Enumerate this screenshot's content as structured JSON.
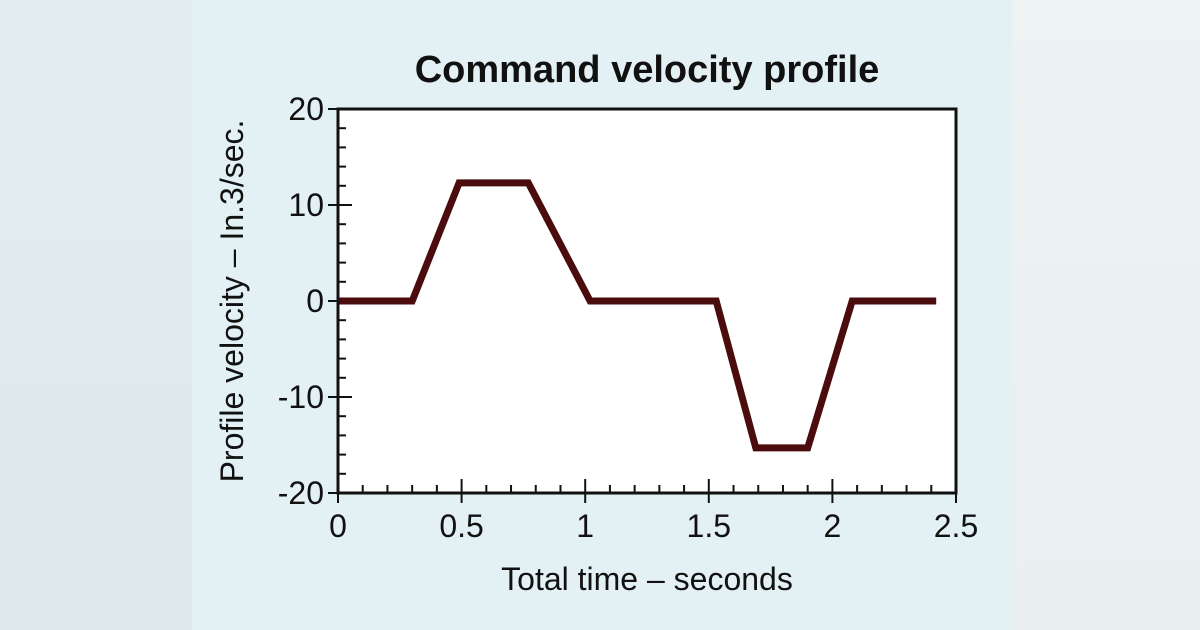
{
  "chart_data": {
    "type": "line",
    "title": "Command velocity profile",
    "xlabel": "Total time – seconds",
    "ylabel": "Profile velocity – In.3/sec.",
    "xlim": [
      0,
      2.5
    ],
    "ylim": [
      -20,
      20
    ],
    "x_ticks": [
      "0",
      "0.5",
      "1",
      "1.5",
      "2",
      "2.5"
    ],
    "y_ticks": [
      "20",
      "10",
      "0",
      "-10",
      "-20"
    ],
    "grid": false,
    "series": [
      {
        "color": "#4a0c0c",
        "points": [
          [
            0,
            0
          ],
          [
            0.3,
            0
          ],
          [
            0.49,
            12.3
          ],
          [
            0.77,
            12.3
          ],
          [
            1.02,
            0
          ],
          [
            1.53,
            0
          ],
          [
            1.69,
            -15.3
          ],
          [
            1.9,
            -15.3
          ],
          [
            2.08,
            0
          ],
          [
            2.42,
            0
          ]
        ]
      }
    ]
  }
}
